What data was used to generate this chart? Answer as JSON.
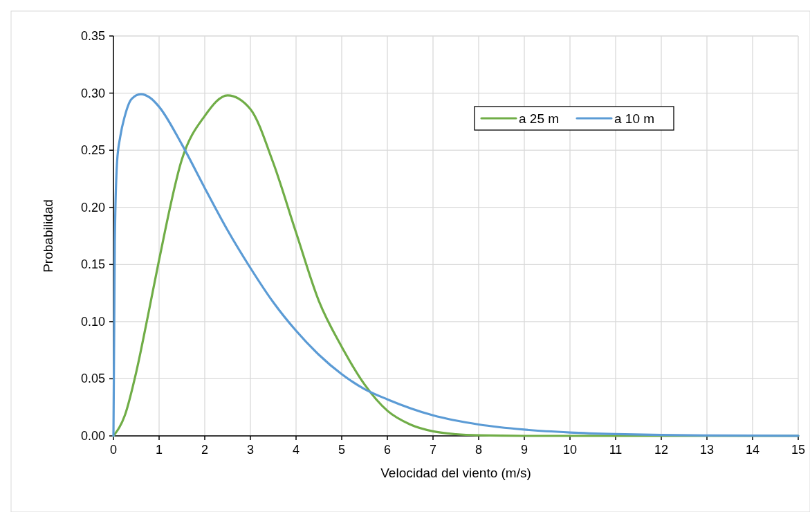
{
  "chart_data": {
    "type": "line",
    "xlabel": "Velocidad del viento (m/s)",
    "ylabel": "Probabilidad",
    "xlim": [
      0,
      15
    ],
    "xticks": [
      0,
      1,
      2,
      3,
      4,
      5,
      6,
      7,
      8,
      9,
      10,
      11,
      12,
      13,
      14,
      15
    ],
    "ylim": [
      0,
      0.35
    ],
    "yticks": [
      {
        "value": 0,
        "label": "0.00"
      },
      {
        "value": 0.05,
        "label": "0.05"
      },
      {
        "value": 0.1,
        "label": "0.10"
      },
      {
        "value": 0.15,
        "label": "0.15"
      },
      {
        "value": 0.2,
        "label": "0.20"
      },
      {
        "value": 0.25,
        "label": "0.25"
      },
      {
        "value": 0.3,
        "label": "0.30"
      },
      {
        "value": 0.35,
        "label": "0.35"
      }
    ],
    "grid": true,
    "legend": "top right",
    "marker": "none",
    "line_style": "solid",
    "series": [
      {
        "name": "a 25 m",
        "color": "#70ad47",
        "x": [
          0,
          0.25,
          0.5,
          0.75,
          1,
          1.5,
          2,
          2.5,
          3,
          3.5,
          4,
          4.5,
          5,
          5.5,
          6,
          6.5,
          7,
          7.5,
          8,
          9,
          10,
          11,
          12,
          13,
          14,
          15
        ],
        "values": [
          0,
          0.018,
          0.056,
          0.104,
          0.154,
          0.242,
          0.28,
          0.298,
          0.286,
          0.239,
          0.178,
          0.118,
          0.078,
          0.045,
          0.022,
          0.01,
          0.004,
          0.0015,
          0.0005,
          0,
          0,
          0,
          0,
          0,
          0,
          0
        ]
      },
      {
        "name": "a 10 m",
        "color": "#5b9bd5",
        "x": [
          0,
          0.03,
          0.08,
          0.15,
          0.25,
          0.4,
          0.6,
          0.8,
          1,
          1.5,
          2,
          2.5,
          3,
          3.5,
          4,
          4.5,
          5,
          5.5,
          6,
          7,
          8,
          9,
          10,
          11,
          12,
          13,
          14,
          15
        ],
        "values": [
          0,
          0.17,
          0.24,
          0.262,
          0.28,
          0.295,
          0.299,
          0.296,
          0.288,
          0.255,
          0.217,
          0.18,
          0.147,
          0.117,
          0.092,
          0.071,
          0.054,
          0.041,
          0.032,
          0.018,
          0.01,
          0.0055,
          0.003,
          0.0016,
          0.0008,
          0.0004,
          0.0002,
          0.0001
        ]
      }
    ]
  }
}
